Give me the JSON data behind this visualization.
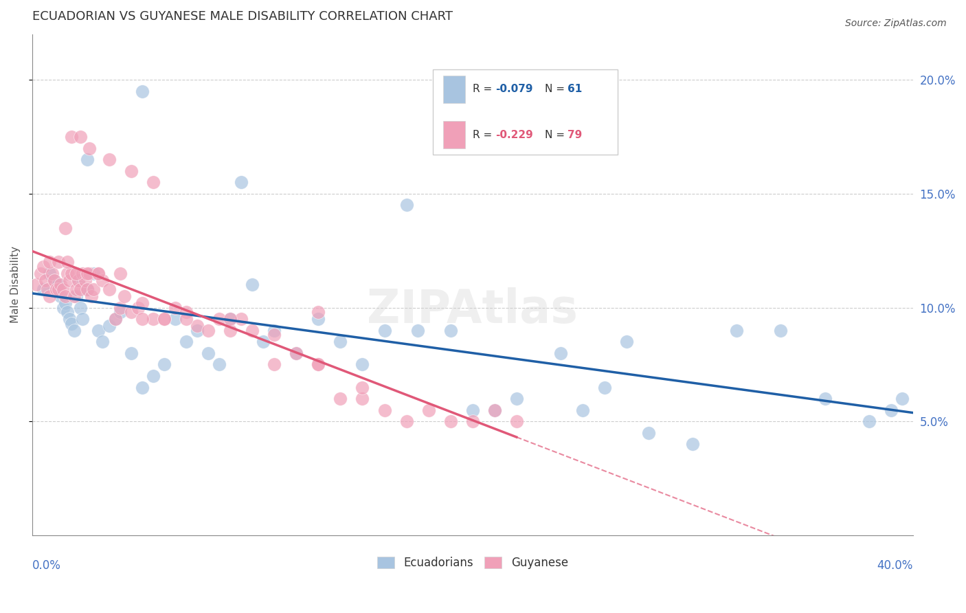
{
  "title": "ECUADORIAN VS GUYANESE MALE DISABILITY CORRELATION CHART",
  "source": "Source: ZipAtlas.com",
  "ylabel": "Male Disability",
  "xlim": [
    0.0,
    0.4
  ],
  "ylim": [
    0.0,
    0.22
  ],
  "yticks": [
    0.05,
    0.1,
    0.15,
    0.2
  ],
  "ytick_labels": [
    "5.0%",
    "10.0%",
    "15.0%",
    "20.0%"
  ],
  "watermark": "ZIPAtlas",
  "blue_color": "#a8c4e0",
  "pink_color": "#f0a0b8",
  "blue_line_color": "#1f5fa6",
  "pink_line_color": "#e05878",
  "axis_label_color": "#4472c4",
  "ecuadorians_x": [
    0.005,
    0.008,
    0.01,
    0.012,
    0.013,
    0.014,
    0.015,
    0.016,
    0.017,
    0.018,
    0.019,
    0.02,
    0.021,
    0.022,
    0.023,
    0.025,
    0.028,
    0.03,
    0.032,
    0.035,
    0.038,
    0.04,
    0.045,
    0.05,
    0.055,
    0.06,
    0.065,
    0.07,
    0.075,
    0.08,
    0.085,
    0.09,
    0.1,
    0.105,
    0.11,
    0.12,
    0.13,
    0.14,
    0.15,
    0.16,
    0.175,
    0.19,
    0.2,
    0.21,
    0.22,
    0.24,
    0.26,
    0.28,
    0.3,
    0.32,
    0.34,
    0.36,
    0.38,
    0.39,
    0.395,
    0.25,
    0.27,
    0.17,
    0.095,
    0.05,
    0.025
  ],
  "ecuadorians_y": [
    0.108,
    0.115,
    0.112,
    0.11,
    0.105,
    0.1,
    0.102,
    0.098,
    0.095,
    0.093,
    0.09,
    0.105,
    0.112,
    0.1,
    0.095,
    0.108,
    0.115,
    0.09,
    0.085,
    0.092,
    0.095,
    0.098,
    0.08,
    0.065,
    0.07,
    0.075,
    0.095,
    0.085,
    0.09,
    0.08,
    0.075,
    0.095,
    0.11,
    0.085,
    0.09,
    0.08,
    0.095,
    0.085,
    0.075,
    0.09,
    0.09,
    0.09,
    0.055,
    0.055,
    0.06,
    0.08,
    0.065,
    0.045,
    0.04,
    0.09,
    0.09,
    0.06,
    0.05,
    0.055,
    0.06,
    0.055,
    0.085,
    0.145,
    0.155,
    0.195,
    0.165
  ],
  "guyanese_x": [
    0.002,
    0.004,
    0.005,
    0.006,
    0.007,
    0.008,
    0.009,
    0.01,
    0.011,
    0.012,
    0.013,
    0.014,
    0.015,
    0.016,
    0.017,
    0.018,
    0.019,
    0.02,
    0.021,
    0.022,
    0.023,
    0.024,
    0.025,
    0.026,
    0.027,
    0.028,
    0.03,
    0.032,
    0.035,
    0.038,
    0.04,
    0.042,
    0.045,
    0.048,
    0.05,
    0.055,
    0.06,
    0.065,
    0.07,
    0.075,
    0.08,
    0.085,
    0.09,
    0.095,
    0.1,
    0.11,
    0.12,
    0.13,
    0.14,
    0.15,
    0.16,
    0.17,
    0.18,
    0.19,
    0.2,
    0.21,
    0.22,
    0.13,
    0.035,
    0.045,
    0.055,
    0.008,
    0.012,
    0.016,
    0.02,
    0.025,
    0.03,
    0.04,
    0.05,
    0.06,
    0.07,
    0.09,
    0.11,
    0.13,
    0.15,
    0.018,
    0.022,
    0.026,
    0.015
  ],
  "guyanese_y": [
    0.11,
    0.115,
    0.118,
    0.112,
    0.108,
    0.105,
    0.115,
    0.112,
    0.108,
    0.108,
    0.11,
    0.108,
    0.105,
    0.115,
    0.112,
    0.115,
    0.105,
    0.108,
    0.112,
    0.108,
    0.115,
    0.112,
    0.108,
    0.115,
    0.105,
    0.108,
    0.115,
    0.112,
    0.108,
    0.095,
    0.1,
    0.105,
    0.098,
    0.1,
    0.102,
    0.095,
    0.095,
    0.1,
    0.098,
    0.092,
    0.09,
    0.095,
    0.09,
    0.095,
    0.09,
    0.088,
    0.08,
    0.075,
    0.06,
    0.06,
    0.055,
    0.05,
    0.055,
    0.05,
    0.05,
    0.055,
    0.05,
    0.098,
    0.165,
    0.16,
    0.155,
    0.12,
    0.12,
    0.12,
    0.115,
    0.115,
    0.115,
    0.115,
    0.095,
    0.095,
    0.095,
    0.095,
    0.075,
    0.075,
    0.065,
    0.175,
    0.175,
    0.17,
    0.135
  ]
}
